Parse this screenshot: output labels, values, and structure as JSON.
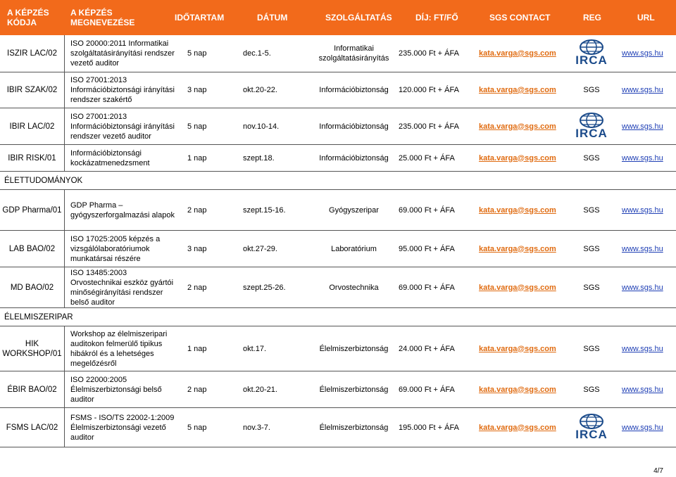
{
  "header": {
    "code": "A KÉPZÉS KÓDJA",
    "name": "A KÉPZÉS MEGNEVEZÉSE",
    "duration": "IDŐTARTAM",
    "date": "DÁTUM",
    "service": "SZOLGÁLTATÁS",
    "fee": "DÍJ: FT/FŐ",
    "contact": "SGS CONTACT",
    "reg": "REG",
    "url": "URL"
  },
  "group1": [
    {
      "code": "ISZIR LAC/02",
      "name": "ISO 20000:2011 Informatikai szolgáltatásirányítási rendszer vezető auditor",
      "duration": "5 nap",
      "date": "dec.1-5.",
      "service": "Informatikai szolgáltatásirányítás",
      "fee": "235.000 Ft + ÁFA",
      "email": "kata.varga@sgs.com",
      "reg": "",
      "reg_logo": "IRCA",
      "url": "www.sgs.hu"
    },
    {
      "code": "IBIR SZAK/02",
      "name": "ISO 27001:2013 Információbiztonsági irányítási rendszer szakértő",
      "duration": "3 nap",
      "date": "okt.20-22.",
      "service": "Információbiztonság",
      "fee": "120.000 Ft + ÁFA",
      "email": "kata.varga@sgs.com",
      "reg": "SGS",
      "reg_logo": "",
      "url": "www.sgs.hu"
    },
    {
      "code": "IBIR LAC/02",
      "name": "ISO 27001:2013 Információbiztonsági irányítási rendszer vezető auditor",
      "duration": "5 nap",
      "date": "nov.10-14.",
      "service": "Információbiztonság",
      "fee": "235.000 Ft + ÁFA",
      "email": "kata.varga@sgs.com",
      "reg": "",
      "reg_logo": "IRCA",
      "url": "www.sgs.hu"
    },
    {
      "code": "IBIR RISK/01",
      "name": "Információbiztonsági kockázatmenedzsment",
      "duration": "1 nap",
      "date": "szept.18.",
      "service": "Információbiztonság",
      "fee": "25.000 Ft + ÁFA",
      "email": "kata.varga@sgs.com",
      "reg": "SGS",
      "reg_logo": "",
      "url": "www.sgs.hu"
    }
  ],
  "section2": "ÉLETTUDOMÁNYOK",
  "group2": [
    {
      "code": "GDP Pharma/01",
      "name": "GDP Pharma – gyógyszerforgalmazási alapok",
      "duration": "2 nap",
      "date": "szept.15-16.",
      "service": "Gyógyszeripar",
      "fee": "69.000 Ft + ÁFA",
      "email": "kata.varga@sgs.com",
      "reg": "SGS",
      "reg_logo": "",
      "url": "www.sgs.hu"
    },
    {
      "code": "LAB BAO/02",
      "name": "ISO 17025:2005 képzés a vizsgálólaboratóriumok munkatársai részére",
      "duration": "3 nap",
      "date": "okt.27-29.",
      "service": "Laboratórium",
      "fee": "95.000 Ft + ÁFA",
      "email": "kata.varga@sgs.com",
      "reg": "SGS",
      "reg_logo": "",
      "url": "www.sgs.hu"
    },
    {
      "code": "MD BAO/02",
      "name": "ISO 13485:2003 Orvostechnikai eszköz gyártói minőségirányítási rendszer belső auditor",
      "duration": "2 nap",
      "date": "szept.25-26.",
      "service": "Orvostechnika",
      "fee": "69.000 Ft + ÁFA",
      "email": "kata.varga@sgs.com",
      "reg": "SGS",
      "reg_logo": "",
      "url": "www.sgs.hu"
    }
  ],
  "section3": "ÉLELMISZERIPAR",
  "group3": [
    {
      "code": "HIK WORKSHOP/01",
      "name": "Workshop az élelmiszeripari auditokon felmerülő tipikus hibákról és a lehetséges megelőzésről",
      "duration": "1 nap",
      "date": "okt.17.",
      "service": "Élelmiszerbiztonság",
      "fee": "24.000 Ft + ÁFA",
      "email": "kata.varga@sgs.com",
      "reg": "SGS",
      "reg_logo": "",
      "url": "www.sgs.hu"
    },
    {
      "code": "ÉBIR BAO/02",
      "name": "ISO 22000:2005 Élelmiszerbiztonsági belső auditor",
      "duration": "2 nap",
      "date": "okt.20-21.",
      "service": "Élelmiszerbiztonság",
      "fee": "69.000 Ft + ÁFA",
      "email": "kata.varga@sgs.com",
      "reg": "SGS",
      "reg_logo": "",
      "url": "www.sgs.hu"
    },
    {
      "code": "FSMS LAC/02",
      "name": "FSMS - ISO/TS 22002-1:2009 Élelmiszerbiztonsági vezető auditor",
      "duration": "5 nap",
      "date": "nov.3-7.",
      "service": "Élelmiszerbiztonság",
      "fee": "195.000 Ft + ÁFA",
      "email": "kata.varga@sgs.com",
      "reg": "",
      "reg_logo": "IRCA",
      "url": "www.sgs.hu"
    }
  ],
  "page_number": "4/7"
}
